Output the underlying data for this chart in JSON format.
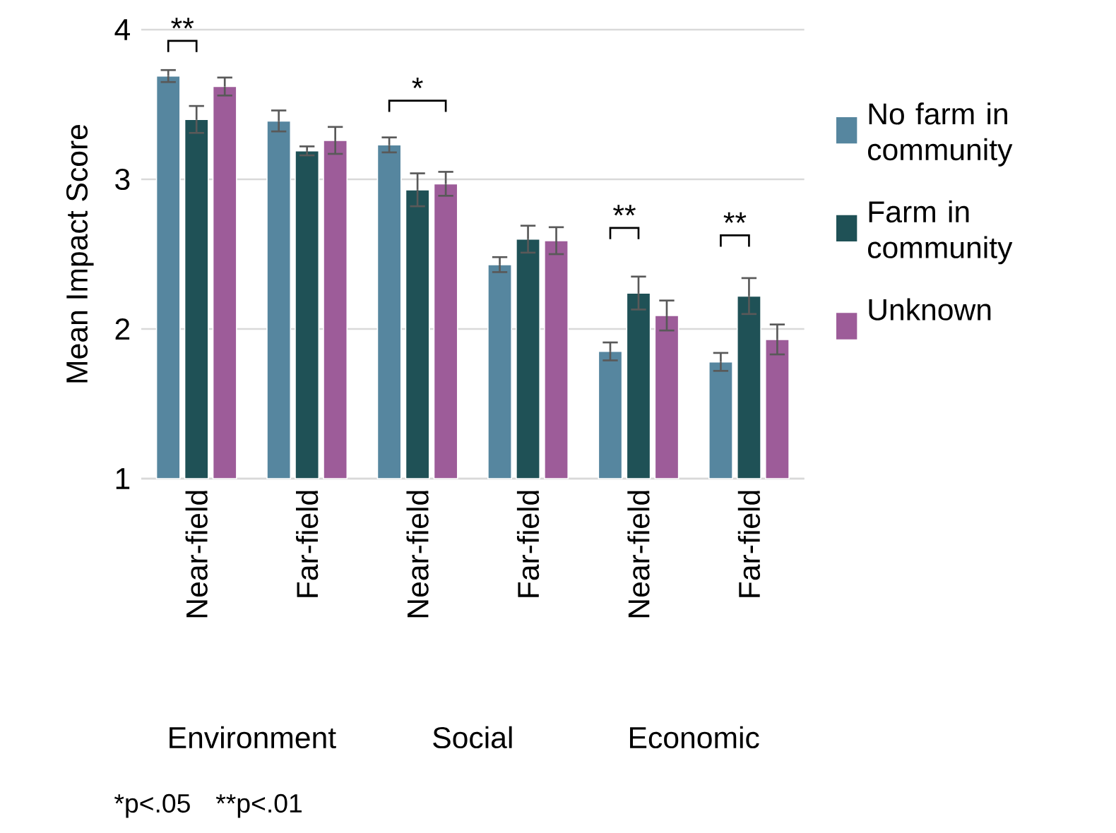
{
  "chart_data": {
    "type": "bar",
    "ylabel": "Mean Impact Score",
    "categories": [
      "Near-field",
      "Far-field",
      "Near-field",
      "Far-field",
      "Near-field",
      "Far-field"
    ],
    "series": [
      {
        "name": "No farm in community",
        "color": "#56869f",
        "values": [
          3.69,
          3.39,
          3.23,
          2.43,
          1.85,
          1.78
        ],
        "errors": [
          0.04,
          0.07,
          0.05,
          0.05,
          0.06,
          0.06
        ]
      },
      {
        "name": "Farm in community",
        "color": "#1f5156",
        "values": [
          3.4,
          3.19,
          2.93,
          2.6,
          2.24,
          2.22
        ],
        "errors": [
          0.09,
          0.03,
          0.11,
          0.09,
          0.11,
          0.12
        ]
      },
      {
        "name": "Unknown",
        "color": "#9d5c99",
        "values": [
          3.62,
          3.26,
          2.97,
          2.59,
          2.09,
          1.93
        ],
        "errors": [
          0.06,
          0.09,
          0.08,
          0.09,
          0.1,
          0.1
        ]
      }
    ],
    "ylim": [
      1,
      4
    ],
    "yticks": [
      1,
      2,
      3,
      4
    ],
    "grid": "y",
    "legend": "right",
    "annotations": [
      "**",
      "*",
      "**",
      "**",
      "Environment",
      "Social",
      "Economic",
      "*p<.05",
      "**p<.01"
    ]
  }
}
